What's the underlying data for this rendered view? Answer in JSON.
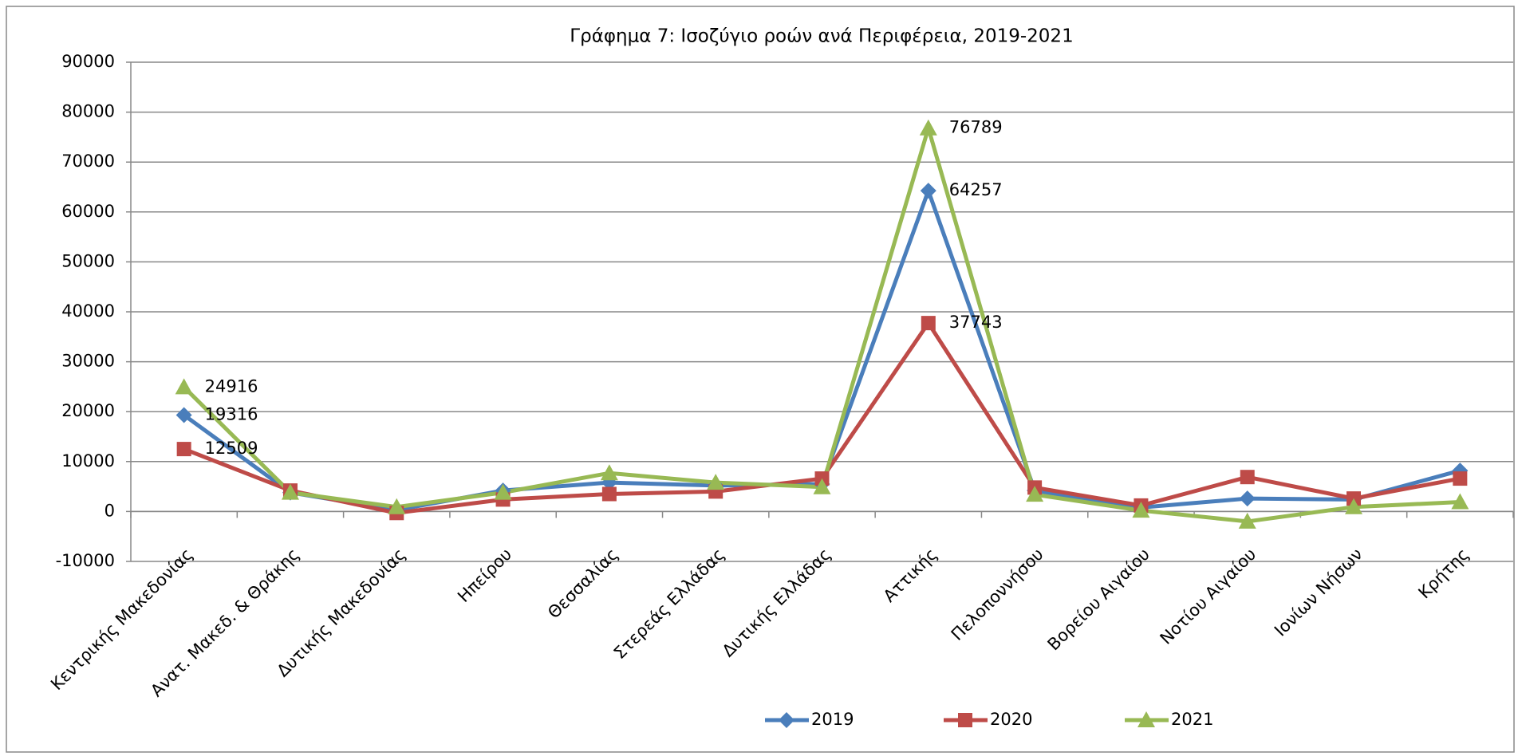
{
  "chart_data": {
    "type": "line",
    "title": "Γράφημα 7: Ισοζύγιο ροών ανά Περιφέρεια, 2019-2021",
    "categories": [
      "Κεντρικής Μακεδονίας",
      "Ανατ. Μακεδ. & Θράκης",
      "Δυτικής Μακεδονίας",
      "Ηπείρου",
      "Θεσσαλίας",
      "Στερεάς Ελλάδας",
      "Δυτικής Ελλάδας",
      "Αττικής",
      "Πελοποννήσου",
      "Βορείου Αιγαίου",
      "Νοτίου Αιγαίου",
      "Ιονίων Νήσων",
      "Κρήτης"
    ],
    "series": [
      {
        "name": "2019",
        "color": "#4a7ebb",
        "marker": "diamond",
        "labeled": [
          0,
          7
        ],
        "values": [
          19316,
          3800,
          300,
          4200,
          5800,
          5200,
          5500,
          64257,
          4200,
          800,
          2600,
          2400,
          8200
        ]
      },
      {
        "name": "2020",
        "color": "#be4b48",
        "marker": "square",
        "labeled": [
          0,
          7
        ],
        "values": [
          12509,
          4200,
          -300,
          2400,
          3500,
          4000,
          6600,
          37743,
          4800,
          1200,
          6900,
          2600,
          6600
        ]
      },
      {
        "name": "2021",
        "color": "#98b954",
        "marker": "triangle",
        "labeled": [
          0,
          7
        ],
        "values": [
          24916,
          3800,
          900,
          3800,
          7700,
          5800,
          4900,
          76789,
          3400,
          200,
          -2000,
          900,
          1900
        ]
      }
    ],
    "ylim": [
      -10000,
      90000
    ],
    "yticks": [
      -10000,
      0,
      10000,
      20000,
      30000,
      40000,
      50000,
      60000,
      70000,
      80000,
      90000
    ],
    "grid": true,
    "legend": "bottom"
  }
}
